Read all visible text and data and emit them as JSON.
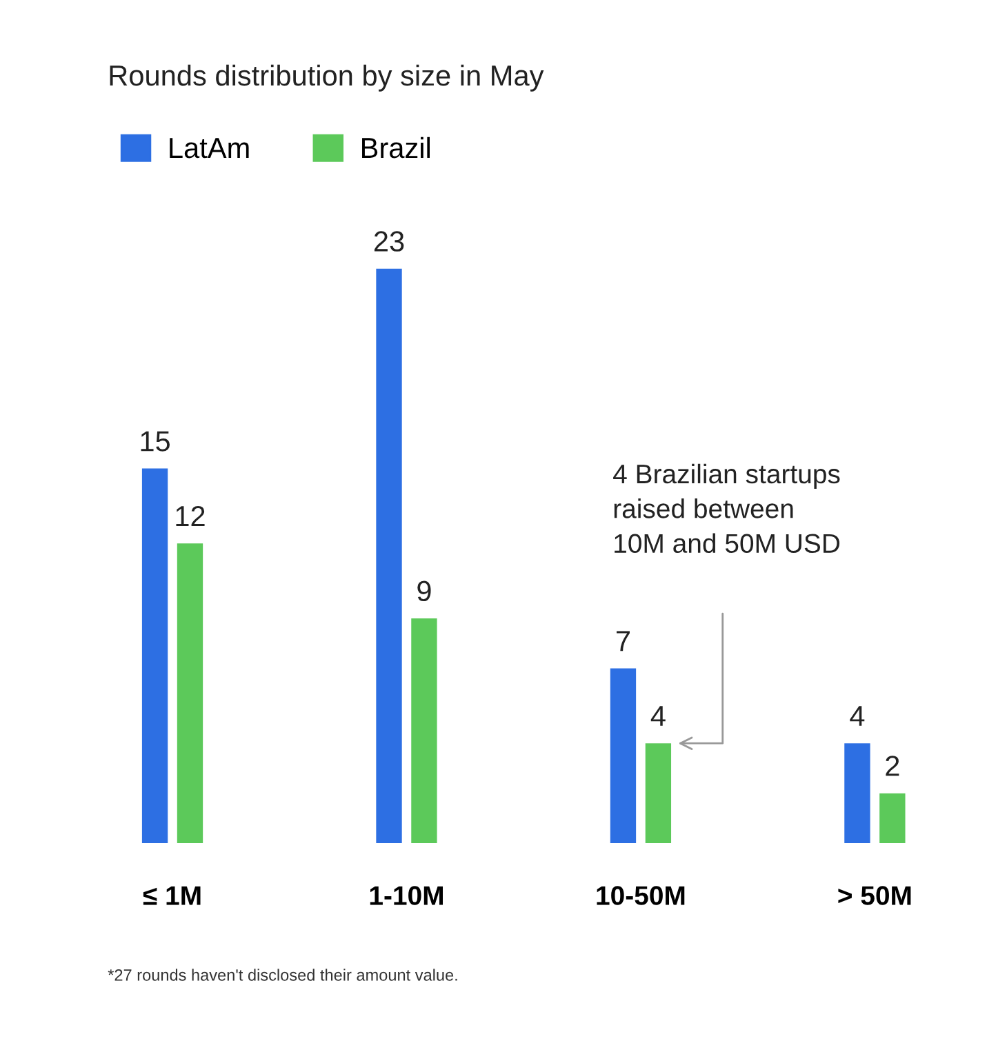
{
  "chart_data": {
    "type": "bar",
    "title": "Rounds distribution by size in May",
    "categories": [
      "≤ 1M",
      "1-10M",
      "10-50M",
      "> 50M"
    ],
    "series": [
      {
        "name": "LatAm",
        "color": "#2d6fe3",
        "values": [
          15,
          23,
          7,
          4
        ]
      },
      {
        "name": "Brazil",
        "color": "#5cc95a",
        "values": [
          12,
          9,
          4,
          2
        ]
      }
    ],
    "data_labels": true,
    "legend": "top left",
    "grid": false,
    "annotations": [
      "4 Brazilian startups\nraised between\n10M and 50M USD",
      "*27 rounds haven't disclosed their amount value."
    ]
  }
}
